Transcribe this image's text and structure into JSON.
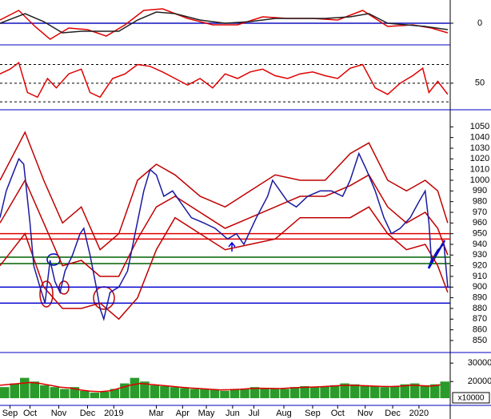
{
  "chart_data": [
    {
      "type": "line",
      "ylim": [
        -12,
        13
      ],
      "yticks": [
        0
      ],
      "xlim": [
        0,
        360
      ],
      "levels": [
        {
          "value": 0,
          "color": "#1010c0",
          "dashed": false
        }
      ],
      "series": [
        {
          "type": "line",
          "color": "#e00000",
          "x": [
            0,
            15,
            28,
            40,
            55,
            70,
            85,
            100,
            115,
            130,
            150,
            170,
            190,
            210,
            230,
            250,
            270,
            290,
            310,
            330,
            345,
            358
          ],
          "values": [
            2,
            8,
            -2,
            -10,
            -3,
            -4,
            -8,
            -1,
            8,
            9,
            3,
            -1,
            -1,
            4,
            3,
            3,
            2,
            8,
            -2,
            -1,
            -3,
            -6
          ]
        },
        {
          "type": "line",
          "color": "#202020",
          "x": [
            0,
            20,
            35,
            50,
            65,
            80,
            95,
            110,
            125,
            140,
            160,
            180,
            200,
            220,
            240,
            260,
            280,
            295,
            310,
            325,
            340,
            358
          ],
          "values": [
            0,
            6,
            1,
            -6,
            -5,
            -5,
            -5,
            2,
            7,
            6,
            2,
            0,
            1,
            3,
            3,
            3,
            4,
            6,
            0,
            -1,
            -2,
            -4
          ]
        }
      ]
    },
    {
      "type": "line",
      "ylim": [
        25,
        85
      ],
      "yticks": [
        50
      ],
      "xlim": [
        0,
        360
      ],
      "levels": [
        {
          "value": 70,
          "color": "#000",
          "dashed": true
        },
        {
          "value": 50,
          "color": "#000",
          "dashed": true
        },
        {
          "value": 30,
          "color": "#000",
          "dashed": true
        }
      ],
      "series": [
        {
          "type": "line",
          "color": "#e00000",
          "x": [
            0,
            8,
            15,
            22,
            30,
            38,
            45,
            55,
            65,
            72,
            80,
            90,
            100,
            110,
            120,
            130,
            140,
            150,
            160,
            170,
            180,
            190,
            200,
            210,
            220,
            230,
            240,
            250,
            260,
            270,
            280,
            290,
            300,
            310,
            320,
            330,
            338,
            343,
            350,
            358
          ],
          "values": [
            60,
            65,
            72,
            40,
            35,
            55,
            45,
            60,
            65,
            40,
            35,
            55,
            60,
            70,
            68,
            62,
            55,
            48,
            55,
            45,
            60,
            55,
            62,
            65,
            58,
            55,
            60,
            62,
            58,
            55,
            66,
            70,
            45,
            38,
            50,
            58,
            66,
            40,
            52,
            38
          ]
        }
      ]
    },
    {
      "type": "line",
      "ylim": [
        841,
        1063
      ],
      "xlim": [
        0,
        360
      ],
      "yticks": [
        850,
        860,
        870,
        880,
        890,
        900,
        910,
        920,
        930,
        940,
        950,
        960,
        970,
        980,
        990,
        1000,
        1010,
        1020,
        1030,
        1040,
        1050
      ],
      "levels": [
        {
          "value": 950,
          "color": "#e00000",
          "dashed": false
        },
        {
          "value": 945,
          "color": "#e00000",
          "dashed": false
        },
        {
          "value": 928,
          "color": "#006000",
          "dashed": false
        },
        {
          "value": 922,
          "color": "#006000",
          "dashed": false
        },
        {
          "value": 900,
          "color": "#0000d0",
          "dashed": false
        },
        {
          "value": 885,
          "color": "#0000d0",
          "dashed": false
        }
      ],
      "series": [
        {
          "type": "line",
          "color": "#c00000",
          "x": [
            0,
            20,
            35,
            50,
            65,
            80,
            95,
            110,
            125,
            140,
            160,
            180,
            200,
            220,
            240,
            260,
            280,
            295,
            310,
            325,
            340,
            350,
            358
          ],
          "values": [
            1000,
            1045,
            1000,
            960,
            975,
            935,
            950,
            1000,
            1015,
            1005,
            985,
            975,
            990,
            1005,
            1000,
            1000,
            1025,
            1035,
            1000,
            990,
            1000,
            990,
            960
          ]
        },
        {
          "type": "line",
          "color": "#c00000",
          "x": [
            0,
            20,
            35,
            50,
            65,
            80,
            95,
            110,
            125,
            140,
            160,
            180,
            200,
            220,
            240,
            260,
            280,
            295,
            310,
            325,
            340,
            350,
            358
          ],
          "values": [
            960,
            1000,
            960,
            920,
            925,
            910,
            910,
            945,
            975,
            985,
            970,
            955,
            965,
            975,
            985,
            985,
            995,
            1005,
            975,
            960,
            970,
            955,
            930
          ]
        },
        {
          "type": "line",
          "color": "#c00000",
          "x": [
            0,
            20,
            35,
            50,
            65,
            80,
            95,
            110,
            125,
            140,
            160,
            180,
            200,
            220,
            240,
            260,
            280,
            295,
            310,
            325,
            340,
            350,
            358
          ],
          "values": [
            920,
            950,
            900,
            880,
            880,
            885,
            870,
            890,
            935,
            965,
            950,
            935,
            940,
            945,
            965,
            965,
            965,
            975,
            950,
            935,
            940,
            920,
            895
          ]
        },
        {
          "type": "line",
          "color": "#1a1aa0",
          "x": [
            0,
            5,
            10,
            15,
            19,
            24,
            27,
            32,
            36,
            40,
            44,
            48,
            52,
            58,
            64,
            67,
            72,
            77,
            80,
            83,
            88,
            95,
            102,
            108,
            115,
            120,
            125,
            131,
            138,
            144,
            153,
            163,
            172,
            182,
            189,
            195,
            205,
            214,
            218,
            224,
            230,
            237,
            246,
            256,
            265,
            274,
            280,
            287,
            293,
            300,
            307,
            313,
            320,
            328,
            335,
            340,
            343,
            345,
            350,
            355,
            358
          ],
          "values": [
            965,
            990,
            1005,
            1020,
            1015,
            960,
            920,
            900,
            885,
            925,
            905,
            895,
            915,
            930,
            950,
            955,
            930,
            900,
            880,
            870,
            895,
            900,
            915,
            950,
            990,
            1010,
            1005,
            985,
            990,
            980,
            965,
            960,
            955,
            945,
            950,
            940,
            965,
            985,
            1000,
            990,
            980,
            975,
            985,
            990,
            990,
            985,
            1000,
            1025,
            1010,
            990,
            965,
            950,
            955,
            965,
            980,
            990,
            960,
            925,
            935,
            940,
            900
          ]
        }
      ]
    },
    {
      "type": "bar",
      "ylim": [
        11000,
        34000
      ],
      "yticks": [
        20000,
        30000
      ],
      "xlim": [
        0,
        360
      ],
      "unit_label": "x10000",
      "xticks": [
        {
          "value": 8,
          "label": "Sep"
        },
        {
          "value": 24,
          "label": "Oct"
        },
        {
          "value": 47,
          "label": "Nov"
        },
        {
          "value": 70,
          "label": "Dec"
        },
        {
          "value": 91,
          "label": "2019"
        },
        {
          "value": 125,
          "label": "Mar"
        },
        {
          "value": 146,
          "label": "Apr"
        },
        {
          "value": 165,
          "label": "May"
        },
        {
          "value": 186,
          "label": "Jun"
        },
        {
          "value": 203,
          "label": "Jul"
        },
        {
          "value": 227,
          "label": "Aug"
        },
        {
          "value": 250,
          "label": "Sep"
        },
        {
          "value": 270,
          "label": "Oct"
        },
        {
          "value": 292,
          "label": "Nov"
        },
        {
          "value": 314,
          "label": "Dec"
        },
        {
          "value": 335,
          "label": "2020"
        }
      ],
      "series": [
        {
          "type": "bar",
          "color": "#2a9a2a",
          "x": [
            0,
            8,
            16,
            24,
            32,
            40,
            48,
            56,
            64,
            72,
            80,
            88,
            96,
            104,
            112,
            120,
            128,
            136,
            144,
            152,
            160,
            168,
            176,
            184,
            192,
            200,
            208,
            216,
            224,
            232,
            240,
            248,
            256,
            264,
            272,
            280,
            288,
            296,
            304,
            312,
            320,
            328,
            336,
            344,
            352
          ],
          "values": [
            17000,
            19000,
            22000,
            20000,
            18000,
            17000,
            16000,
            17000,
            15000,
            14000,
            14500,
            16000,
            19000,
            22000,
            20000,
            18000,
            17500,
            17000,
            16500,
            16000,
            16000,
            15500,
            15000,
            16000,
            16000,
            17000,
            16500,
            16000,
            16000,
            17000,
            17500,
            17000,
            17500,
            18000,
            19000,
            18500,
            18000,
            17500,
            17000,
            17500,
            18500,
            19000,
            18000,
            18500,
            20000
          ]
        },
        {
          "type": "line",
          "color": "#e00000",
          "x": [
            0,
            8,
            16,
            24,
            32,
            40,
            48,
            56,
            64,
            72,
            80,
            88,
            96,
            104,
            112,
            120,
            128,
            136,
            144,
            152,
            160,
            168,
            176,
            184,
            192,
            200,
            208,
            216,
            224,
            232,
            240,
            248,
            256,
            264,
            272,
            280,
            288,
            296,
            304,
            312,
            320,
            328,
            336,
            344,
            352
          ],
          "values": [
            18000,
            18500,
            19000,
            19500,
            19000,
            18000,
            17000,
            16500,
            15500,
            14800,
            14500,
            15000,
            16500,
            18000,
            19000,
            18500,
            18000,
            17500,
            17000,
            16500,
            16200,
            15800,
            15500,
            15600,
            15800,
            16200,
            16400,
            16300,
            16200,
            16500,
            16800,
            17000,
            17200,
            17500,
            17800,
            18000,
            17800,
            17600,
            17400,
            17300,
            17500,
            18000,
            17800,
            17500,
            18200
          ]
        }
      ]
    }
  ]
}
